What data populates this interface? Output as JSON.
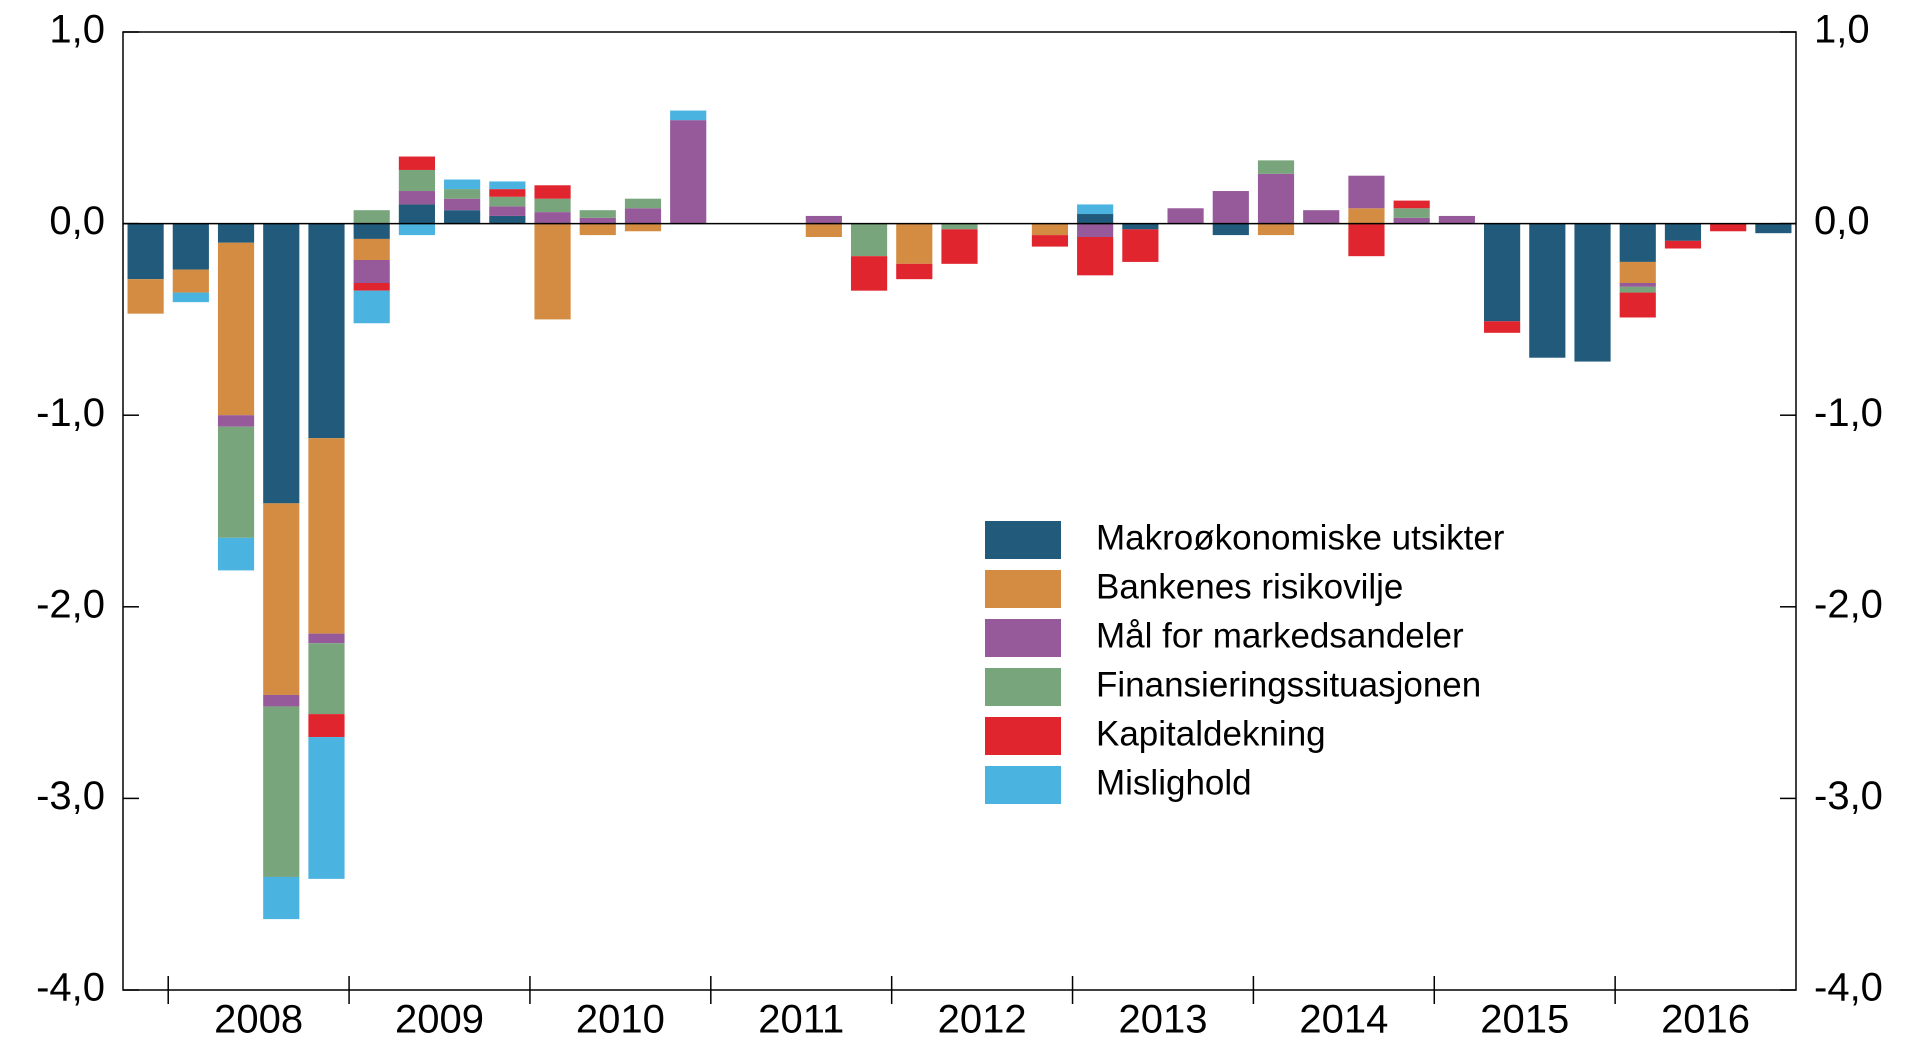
{
  "chart_data": {
    "type": "bar",
    "stacked": true,
    "categories": [
      null,
      null,
      "2008",
      null,
      null,
      null,
      "2009",
      null,
      null,
      null,
      "2010",
      null,
      null,
      null,
      "2011",
      null,
      null,
      null,
      "2012",
      null,
      null,
      null,
      "2013",
      null,
      null,
      null,
      "2014",
      null,
      null,
      null,
      "2015",
      null,
      null,
      null,
      "2016",
      null,
      null
    ],
    "series": [
      {
        "name": "Makroøkonomiske utsikter",
        "color": "#215a7a",
        "values": [
          -0.29,
          -0.24,
          -0.1,
          -1.46,
          -1.12,
          -0.08,
          0.1,
          0.07,
          0.04,
          0,
          0,
          0,
          0,
          0,
          0,
          0,
          0,
          0,
          0,
          0,
          0,
          0.05,
          -0.03,
          0,
          -0.06,
          0,
          0,
          0,
          0,
          0,
          -0.51,
          -0.7,
          -0.72,
          -0.2,
          -0.09,
          0,
          -0.05
        ]
      },
      {
        "name": "Bankenes risikovilje",
        "color": "#d38c41",
        "values": [
          -0.18,
          -0.12,
          -0.9,
          -1.0,
          -1.02,
          -0.11,
          0,
          0,
          0,
          -0.5,
          -0.06,
          -0.04,
          0,
          0,
          0,
          -0.07,
          0,
          -0.21,
          0,
          0,
          -0.06,
          0,
          0,
          0,
          0,
          -0.06,
          0,
          0.08,
          0,
          0,
          0,
          0,
          0,
          -0.11,
          0,
          0,
          0
        ]
      },
      {
        "name": "Mål for markedsandeler",
        "color": "#96599a",
        "values": [
          0,
          0,
          -0.06,
          -0.06,
          -0.05,
          -0.12,
          0.07,
          0.06,
          0.05,
          0.06,
          0.03,
          0.08,
          0.54,
          0,
          0,
          0.04,
          0,
          0,
          0,
          0,
          0,
          -0.07,
          0,
          0.08,
          0.17,
          0.26,
          0.07,
          0.17,
          0.03,
          0.04,
          0,
          0,
          0,
          -0.02,
          0,
          0,
          0
        ]
      },
      {
        "name": "Finansieringssituasjonen",
        "color": "#78a57c",
        "values": [
          0,
          0,
          -0.58,
          -0.89,
          -0.37,
          0.07,
          0.11,
          0.05,
          0.05,
          0.07,
          0.04,
          0.05,
          0,
          0,
          0,
          0,
          -0.17,
          0,
          -0.03,
          0,
          0,
          0,
          0,
          0,
          0,
          0.07,
          0,
          0,
          0.05,
          0,
          0,
          0,
          0,
          -0.03,
          0,
          0,
          0
        ]
      },
      {
        "name": "Kapitaldekning",
        "color": "#e0252f",
        "values": [
          0,
          0,
          0,
          0,
          -0.12,
          -0.04,
          0.07,
          0,
          0.04,
          0.07,
          0,
          0,
          0,
          0,
          0,
          0,
          -0.18,
          -0.08,
          -0.18,
          0,
          -0.06,
          -0.2,
          -0.17,
          0,
          0,
          0,
          0,
          -0.17,
          0.04,
          0,
          -0.06,
          0,
          0,
          -0.13,
          -0.04,
          -0.04,
          0
        ]
      },
      {
        "name": "Mislighold",
        "color": "#4bb3e0",
        "values": [
          0,
          -0.05,
          -0.17,
          -0.22,
          -0.74,
          -0.17,
          -0.06,
          0.05,
          0.04,
          0,
          0,
          0,
          0.05,
          0,
          0,
          0,
          0,
          0,
          0,
          0,
          0,
          0.05,
          0,
          0,
          0,
          0,
          0,
          0,
          0,
          0,
          0,
          0,
          0,
          0,
          0,
          0,
          0
        ]
      }
    ],
    "ylim": [
      -4,
      1
    ],
    "yticks": [
      {
        "value": -4,
        "label": "-4,0"
      },
      {
        "value": -3,
        "label": "-3,0"
      },
      {
        "value": -2,
        "label": "-2,0"
      },
      {
        "value": -1,
        "label": "-1,0"
      },
      {
        "value": 0,
        "label": "0,0"
      },
      {
        "value": 1,
        "label": "1,0"
      }
    ],
    "legend": "center-right"
  }
}
